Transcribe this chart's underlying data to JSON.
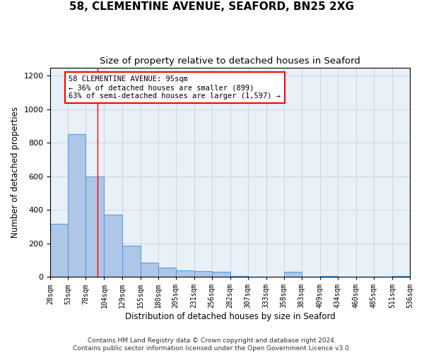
{
  "title": "58, CLEMENTINE AVENUE, SEAFORD, BN25 2XG",
  "subtitle": "Size of property relative to detached houses in Seaford",
  "xlabel": "Distribution of detached houses by size in Seaford",
  "ylabel": "Number of detached properties",
  "footnote1": "Contains HM Land Registry data © Crown copyright and database right 2024.",
  "footnote2": "Contains public sector information licensed under the Open Government Licence v3.0.",
  "bin_edges": [
    28,
    53,
    78,
    104,
    129,
    155,
    180,
    205,
    231,
    256,
    282,
    307,
    333,
    358,
    383,
    409,
    434,
    460,
    485,
    511,
    536
  ],
  "bar_heights": [
    315,
    850,
    600,
    370,
    185,
    85,
    55,
    40,
    35,
    30,
    5,
    0,
    0,
    30,
    0,
    5,
    0,
    0,
    0,
    5
  ],
  "bar_color": "#aec6e8",
  "bar_edge_color": "#5a9fd4",
  "xtick_labels": [
    "28sqm",
    "53sqm",
    "78sqm",
    "104sqm",
    "129sqm",
    "155sqm",
    "180sqm",
    "205sqm",
    "231sqm",
    "256sqm",
    "282sqm",
    "307sqm",
    "333sqm",
    "358sqm",
    "383sqm",
    "409sqm",
    "434sqm",
    "460sqm",
    "485sqm",
    "511sqm",
    "536sqm"
  ],
  "ylim": [
    0,
    1250
  ],
  "yticks": [
    0,
    200,
    400,
    600,
    800,
    1000,
    1200
  ],
  "property_line_x": 95,
  "annotation_text": "58 CLEMENTINE AVENUE: 95sqm\n← 36% of detached houses are smaller (899)\n63% of semi-detached houses are larger (1,597) →",
  "grid_color": "#cccccc",
  "bg_color": "#e8f0f8",
  "title_fontsize": 11,
  "subtitle_fontsize": 9.5,
  "axis_label_fontsize": 8.5,
  "tick_fontsize": 7,
  "annotation_fontsize": 7.5,
  "footnote_fontsize": 6.5
}
